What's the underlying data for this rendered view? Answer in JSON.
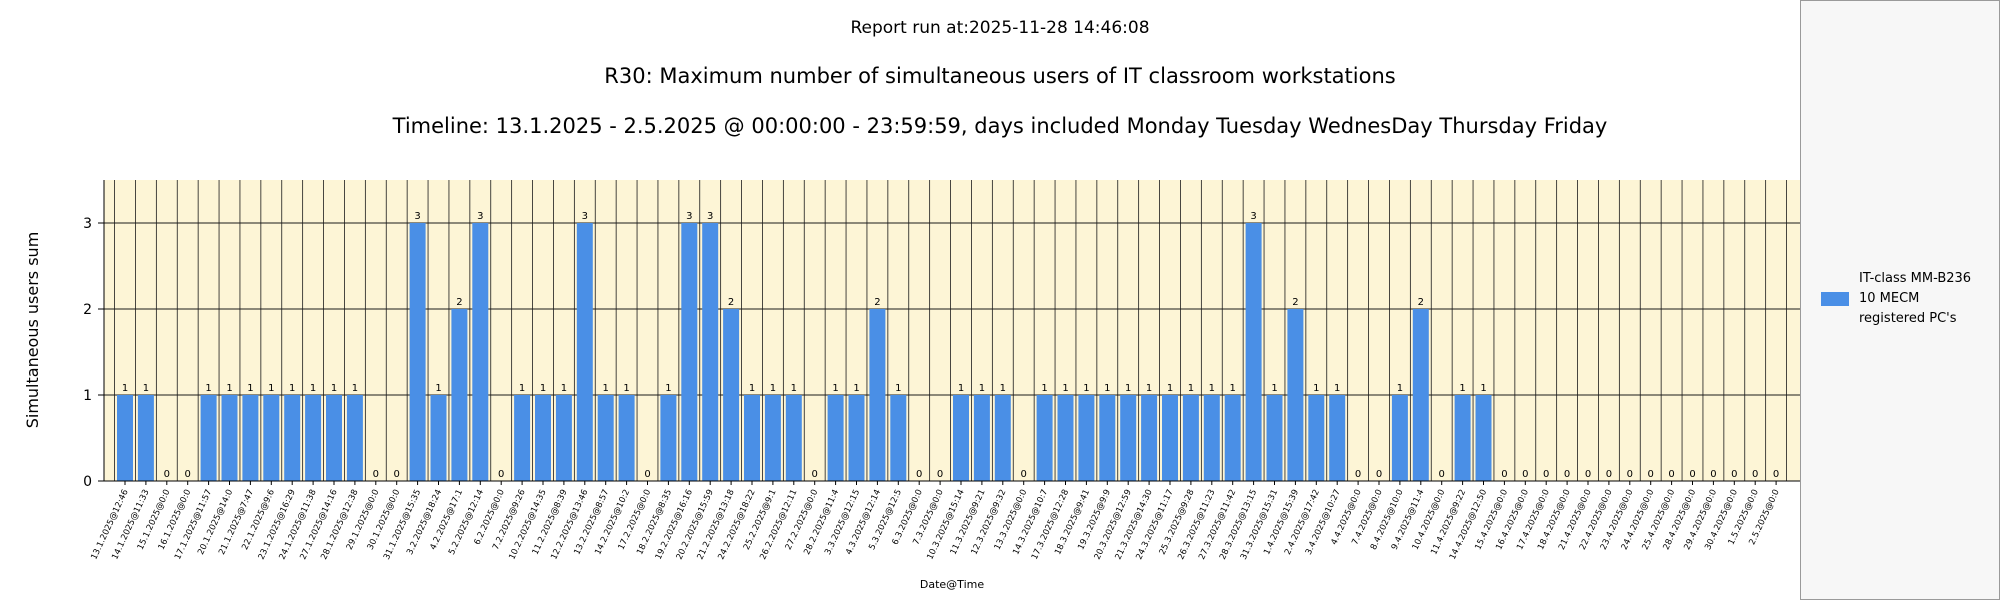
{
  "report_time": "Report run at:2025-11-28 14:46:08",
  "legend": {
    "lines": [
      "IT-class MM-B236",
      "10 MECM",
      "registered PC's"
    ]
  },
  "chart_data": {
    "type": "bar",
    "title": "R30: Maximum number of simultaneous users of IT classroom workstations",
    "subtitle": "Timeline: 13.1.2025  - 2.5.2025  @  00:00:00 -  23:59:59, days included Monday Tuesday WednesDay Thursday Friday",
    "xlabel": "Date@Time",
    "ylabel": "Simultaneous users sum",
    "ylim": [
      0,
      3.5
    ],
    "yticks": [
      0,
      1,
      2,
      3
    ],
    "grid": true,
    "legend_position": "right",
    "bar_color": "#4a8fe6",
    "plot_background": "#fdf5d6",
    "categories": [
      "13.1.2025@12:46",
      "14.1.2025@11:33",
      "15.1.2025@0:0",
      "16.1.2025@0:0",
      "17.1.2025@11:57",
      "20.1.2025@14:0",
      "21.1.2025@7:47",
      "22.1.2025@9:6",
      "23.1.2025@16:29",
      "24.1.2025@11:38",
      "27.1.2025@14:16",
      "28.1.2025@12:38",
      "29.1.2025@0:0",
      "30.1.2025@0:0",
      "31.1.2025@15:35",
      "3.2.2025@18:24",
      "4.2.2025@17:1",
      "5.2.2025@12:14",
      "6.2.2025@0:0",
      "7.2.2025@9:26",
      "10.2.2025@14:35",
      "11.2.2025@8:39",
      "12.2.2025@13:46",
      "13.2.2025@8:57",
      "14.2.2025@10:2",
      "17.2.2025@0:0",
      "18.2.2025@8:35",
      "19.2.2025@16:16",
      "20.2.2025@15:59",
      "21.2.2025@13:18",
      "24.2.2025@18:22",
      "25.2.2025@9:1",
      "26.2.2025@12:11",
      "27.2.2025@0:0",
      "28.2.2025@11:4",
      "3.3.2025@12:15",
      "4.3.2025@12:14",
      "5.3.2025@12:5",
      "6.3.2025@0:0",
      "7.3.2025@0:0",
      "10.3.2025@15:14",
      "11.3.2025@9:21",
      "12.3.2025@9:32",
      "13.3.2025@0:0",
      "14.3.2025@10:7",
      "17.3.2025@12:28",
      "18.3.2025@9:41",
      "19.3.2025@9:9",
      "20.3.2025@12:59",
      "21.3.2025@14:30",
      "24.3.2025@11:17",
      "25.3.2025@9:28",
      "26.3.2025@11:23",
      "27.3.2025@11:42",
      "28.3.2025@13:15",
      "31.3.2025@15:31",
      "1.4.2025@15:39",
      "2.4.2025@17:42",
      "3.4.2025@10:27",
      "4.4.2025@0:0",
      "7.4.2025@0:0",
      "8.4.2025@10:0",
      "9.4.2025@11:4",
      "10.4.2025@0:0",
      "11.4.2025@9:22",
      "14.4.2025@12:50",
      "15.4.2025@0:0",
      "16.4.2025@0:0",
      "17.4.2025@0:0",
      "18.4.2025@0:0",
      "21.4.2025@0:0",
      "22.4.2025@0:0",
      "23.4.2025@0:0",
      "24.4.2025@0:0",
      "25.4.2025@0:0",
      "28.4.2025@0:0",
      "29.4.2025@0:0",
      "30.4.2025@0:0",
      "1.5.2025@0:0",
      "2.5.2025@0:0"
    ],
    "series": [
      {
        "name": "IT-class MM-B236 10 MECM registered PC's",
        "values": [
          1,
          1,
          0,
          0,
          1,
          1,
          1,
          1,
          1,
          1,
          1,
          1,
          0,
          0,
          3,
          1,
          2,
          3,
          0,
          1,
          1,
          1,
          3,
          1,
          1,
          0,
          1,
          3,
          3,
          2,
          1,
          1,
          1,
          0,
          1,
          1,
          2,
          1,
          0,
          0,
          1,
          1,
          1,
          0,
          1,
          1,
          1,
          1,
          1,
          1,
          1,
          1,
          1,
          1,
          3,
          1,
          2,
          1,
          1,
          0,
          0,
          1,
          2,
          0,
          1,
          1,
          0,
          0,
          0,
          0,
          0,
          0,
          0,
          0,
          0,
          0,
          0,
          0,
          0,
          0
        ]
      }
    ]
  }
}
